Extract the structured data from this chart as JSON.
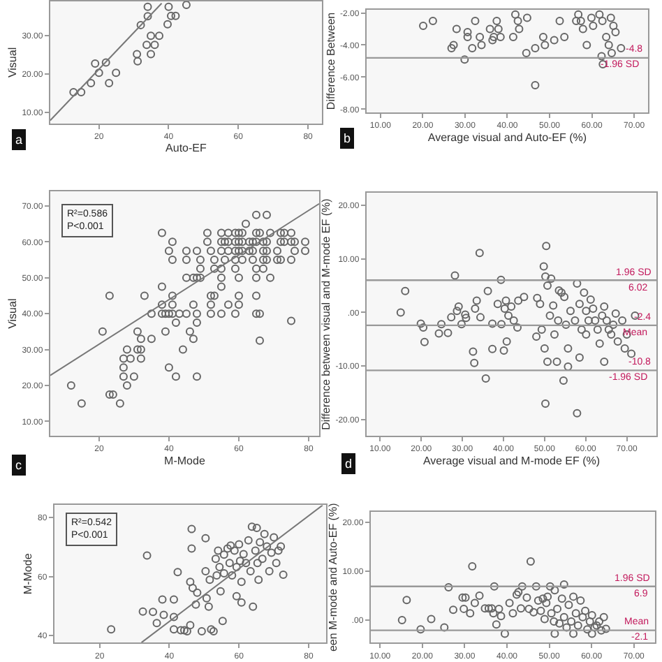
{
  "chart_data": [
    {
      "type": "scatter",
      "title": "a",
      "xlabel": "Auto-EF",
      "ylabel": "Visual",
      "xlim": [
        6,
        84
      ],
      "ylim": [
        7,
        39
      ],
      "xticks": [
        20,
        40,
        60,
        80
      ],
      "yticks": [
        {
          "value": 10,
          "label": "10.00"
        },
        {
          "value": 20,
          "label": "20.00"
        },
        {
          "value": 30,
          "label": "30.00"
        }
      ],
      "marker": "circle",
      "series": [
        {
          "color": "#666666",
          "x": [
            12.7,
            14.9,
            17.7,
            22.9,
            18.9,
            20,
            22,
            24.9,
            30.9,
            31.1,
            34.9,
            33.7,
            36,
            34.9,
            37.3,
            32,
            34,
            39.7,
            40.7,
            42,
            34,
            40,
            45.1
          ],
          "values": [
            15.2,
            15.2,
            17.6,
            17.6,
            22.7,
            20.3,
            23,
            20.3,
            25.2,
            23.3,
            25.2,
            27.6,
            27.6,
            30,
            30,
            32.8,
            35.1,
            33,
            35.2,
            35.2,
            37.6,
            37.6,
            38.1
          ]
        },
        {
          "type": "line",
          "marker": "none",
          "color": "#777777",
          "x": [
            6,
            38
          ],
          "values": [
            7.8,
            38.5
          ]
        }
      ]
    },
    {
      "type": "scatter",
      "title": "b",
      "xlabel": "Average visual and Auto-EF (%)",
      "ylabel": "Difference Between",
      "xlim": [
        6.7,
        73.3
      ],
      "ylim": [
        -8.2,
        -1.8
      ],
      "xticks": [
        {
          "value": 10,
          "label": "10.00"
        },
        {
          "value": 20,
          "label": "20.00"
        },
        {
          "value": 30,
          "label": "30.00"
        },
        {
          "value": 40,
          "label": "40.00"
        },
        {
          "value": 50,
          "label": "50.00"
        },
        {
          "value": 60,
          "label": "60.00"
        },
        {
          "value": 70,
          "label": "70.00"
        }
      ],
      "yticks": [
        {
          "value": -2,
          "label": "-2.00"
        },
        {
          "value": -4,
          "label": "-4.00"
        },
        {
          "value": -6,
          "label": "-6.00"
        },
        {
          "value": -8,
          "label": "-8.00"
        }
      ],
      "marker": "circle",
      "series": [
        {
          "color": "#666666",
          "x": [
            20.1,
            22.4,
            26.8,
            27.3,
            28.0,
            30.6,
            30.6,
            29.9,
            31.7,
            32.4,
            33.5,
            33.9,
            35.9,
            36.5,
            37.5,
            37.9,
            36.8,
            38.4,
            41.4,
            41.9,
            42.5,
            42.8,
            44.7,
            44.5,
            46.6,
            46.6,
            48.5,
            48.9,
            51.1,
            52.4,
            53.5,
            56.3,
            57.4,
            56.8,
            57.9,
            58.8,
            59.9,
            60.3,
            61.8,
            62.5,
            62.3,
            62.6,
            63.4,
            64.0,
            64.5,
            64.7,
            65.1,
            65.6,
            66.9
          ],
          "values": [
            -2.8,
            -2.5,
            -4.2,
            -4.0,
            -3.0,
            -3.2,
            -3.5,
            -4.9,
            -4.2,
            -2.5,
            -3.5,
            -4.0,
            -3.0,
            -3.7,
            -2.5,
            -3.0,
            -3.5,
            -3.5,
            -3.5,
            -2.1,
            -2.5,
            -3.0,
            -2.3,
            -4.5,
            -4.2,
            -6.5,
            -3.5,
            -4.0,
            -3.7,
            -2.5,
            -3.5,
            -2.5,
            -2.5,
            -2.1,
            -3.0,
            -4.0,
            -2.3,
            -2.8,
            -2.1,
            -2.5,
            -4.7,
            -5.2,
            -3.5,
            -4.0,
            -2.3,
            -4.5,
            -2.8,
            -3.2,
            -4.2
          ]
        }
      ],
      "ref_lines": [
        {
          "axis": "y",
          "value": -4.8,
          "label": "-4.8",
          "color": "#999999"
        }
      ],
      "annotations": [
        {
          "text": "-1.96 SD",
          "x": 72,
          "y": -4.8
        }
      ]
    },
    {
      "type": "scatter",
      "title": "c",
      "xlabel": "M-Mode",
      "ylabel": "Visual",
      "xlim": [
        6,
        83
      ],
      "ylim": [
        6,
        74
      ],
      "xticks": [
        20,
        40,
        60,
        80
      ],
      "yticks": [
        {
          "value": 10,
          "label": "10.00"
        },
        {
          "value": 20,
          "label": "20.00"
        },
        {
          "value": 30,
          "label": "30.00"
        },
        {
          "value": 40,
          "label": "40.00"
        },
        {
          "value": 50,
          "label": "50.00"
        },
        {
          "value": 60,
          "label": "60.00"
        },
        {
          "value": 70,
          "label": "70.00"
        }
      ],
      "marker": "circle",
      "series": [
        {
          "color": "#666666",
          "x": [
            38,
            51,
            55,
            57,
            59,
            60,
            61,
            65,
            66,
            69,
            72,
            73,
            75,
            41,
            51,
            55,
            56,
            57,
            59,
            60,
            61,
            63,
            64,
            65,
            67,
            68,
            72,
            73,
            75,
            76,
            79,
            40,
            45,
            48,
            52,
            55,
            57,
            59,
            60,
            61,
            63,
            64,
            67,
            68,
            71,
            76,
            79,
            41,
            45,
            49,
            53,
            56,
            59,
            61,
            64,
            67,
            68,
            71,
            72,
            75,
            49,
            53,
            55,
            59,
            65,
            67,
            45,
            47,
            48,
            49,
            55,
            60,
            65,
            69,
            38,
            55,
            23,
            33,
            41,
            52,
            53,
            60,
            65,
            38,
            41,
            47,
            52,
            57,
            60,
            35,
            38,
            39,
            40,
            41,
            43,
            45,
            48,
            52,
            55,
            59,
            65,
            66,
            75,
            42,
            48,
            21,
            31,
            39,
            46,
            32,
            35,
            47,
            66,
            28,
            31,
            32,
            44,
            27,
            29,
            32,
            27,
            40,
            27,
            30,
            42,
            48,
            12,
            28,
            23,
            24,
            15,
            26,
            62,
            65,
            68
          ],
          "values": [
            62.5,
            62.5,
            62.5,
            62.5,
            62.5,
            62.5,
            62.5,
            62.5,
            62.5,
            62.5,
            62.5,
            62.5,
            62.5,
            60,
            60,
            60,
            60,
            60,
            60,
            60,
            60,
            60,
            60,
            60,
            60,
            60,
            60,
            60,
            60,
            60,
            60,
            57.5,
            57.5,
            57.5,
            57.5,
            57.5,
            57.5,
            57.5,
            57.5,
            57.5,
            57.5,
            57.5,
            57.5,
            57.5,
            57.5,
            57.5,
            57.5,
            55,
            55,
            55,
            55,
            55,
            55,
            55,
            55,
            55,
            55,
            55,
            55,
            55,
            52.5,
            52.5,
            52.5,
            52.5,
            52.5,
            52.5,
            50,
            50,
            50,
            50,
            50,
            50,
            50,
            50,
            47.5,
            47.5,
            45,
            45,
            45,
            45,
            45,
            45,
            45,
            42.5,
            42.5,
            42.5,
            42.5,
            42.5,
            42.5,
            40,
            40,
            40,
            40,
            40,
            40,
            40,
            40,
            40,
            40,
            40,
            40,
            40,
            38,
            37.5,
            37.5,
            35,
            35,
            35,
            35,
            33,
            33,
            33,
            32.5,
            30,
            30,
            30,
            30,
            27.5,
            27.5,
            27.5,
            25,
            25,
            22.5,
            22.5,
            22.5,
            22.5,
            20,
            20,
            17.5,
            17.5,
            15,
            15,
            65,
            67.5,
            67.5
          ]
        },
        {
          "type": "line",
          "marker": "none",
          "color": "#777777",
          "x": [
            6,
            83
          ],
          "values": [
            22.8,
            70.6
          ]
        }
      ],
      "annotations": [
        "R²=0.586",
        "P<0.001"
      ]
    },
    {
      "type": "scatter",
      "title": "d",
      "xlabel": "Average visual and M-mode EF (%)",
      "ylabel": "Difference between visual and M-mode EF (%)",
      "xlim": [
        6.7,
        77.2
      ],
      "ylim": [
        -23,
        22.3
      ],
      "xticks": [
        {
          "value": 10,
          "label": "10.00"
        },
        {
          "value": 20,
          "label": "20.00"
        },
        {
          "value": 30,
          "label": "30.00"
        },
        {
          "value": 40,
          "label": "40.00"
        },
        {
          "value": 50,
          "label": "50.00"
        },
        {
          "value": 60,
          "label": "60.00"
        },
        {
          "value": 70,
          "label": "70.00"
        }
      ],
      "yticks": [
        {
          "value": 20,
          "label": "20.00"
        },
        {
          "value": 10,
          "label": "10.00"
        },
        {
          "value": 0,
          "label": ".00"
        },
        {
          "value": -10,
          "label": "-10.00"
        },
        {
          "value": -20,
          "label": "-20.00"
        }
      ],
      "marker": "circle",
      "series": [
        {
          "color": "#666666",
          "x": [
            15.0,
            16.1,
            19.9,
            20.5,
            20.8,
            24.3,
            24.9,
            26.5,
            27.3,
            28.2,
            28.7,
            29.1,
            29.8,
            30.7,
            30.9,
            32.6,
            32.9,
            33.1,
            33.5,
            34.2,
            34.4,
            35.7,
            36.2,
            37.3,
            37.3,
            38.6,
            39.4,
            39.5,
            40.1,
            40.3,
            40.6,
            40.8,
            41.2,
            41.9,
            42.5,
            43.4,
            43.6,
            45.0,
            48.0,
            48.2,
            48.9,
            49.3,
            49.8,
            50.0,
            50.2,
            50.4,
            50.7,
            50.7,
            51.3,
            51.6,
            52.1,
            52.4,
            53.0,
            53.3,
            53.5,
            54.1,
            54.6,
            54.8,
            55.2,
            55.7,
            56.3,
            57.4,
            57.9,
            57.9,
            58.5,
            59.0,
            59.6,
            60.1,
            60.7,
            61.2,
            61.8,
            62.3,
            62.9,
            63.4,
            64.0,
            64.5,
            65.1,
            65.6,
            66.2,
            66.7,
            67.3,
            67.8,
            68.9,
            69.5,
            70.0,
            71.1,
            72.0,
            64.5,
            60.1,
            55.7,
            50.2,
            58.5
          ],
          "values": [
            0,
            4.0,
            -2.1,
            -2.8,
            -5.5,
            -3.9,
            -2.2,
            -3.8,
            -0.9,
            6.9,
            0.3,
            1.1,
            -2.2,
            -0.4,
            -1.0,
            -7.3,
            -9.4,
            0.7,
            2.2,
            11.1,
            -0.9,
            -12.3,
            4.0,
            -2.1,
            -6.8,
            1.6,
            6.1,
            -2.2,
            -7.1,
            0.7,
            2.2,
            -5.4,
            -0.6,
            1.1,
            -1.5,
            -2.8,
            2.2,
            2.9,
            -4.5,
            2.7,
            1.6,
            -3.2,
            8.6,
            -6.7,
            6.7,
            12.4,
            5.0,
            -9.2,
            -0.6,
            6.3,
            1.3,
            -4.1,
            -9.2,
            -1.5,
            4.1,
            3.7,
            -12.7,
            2.9,
            -2.3,
            -10.1,
            0.3,
            -1.5,
            5.4,
            -18.8,
            1.6,
            -3.2,
            3.7,
            0.3,
            -1.5,
            2.4,
            0.7,
            -1.5,
            -3.2,
            -5.8,
            -0.6,
            1.1,
            -1.5,
            -3.2,
            -4.1,
            -2.3,
            -0.2,
            -5.4,
            -1.5,
            -6.7,
            -4.1,
            -7.7,
            -0.6,
            -9.2,
            -4.1,
            -6.7,
            -17.0,
            -8.4
          ]
        }
      ],
      "ref_lines": [
        {
          "axis": "y",
          "value": 6.02,
          "label": "1.96 SD",
          "color": "#999999"
        },
        {
          "axis": "y",
          "value": -2.4,
          "label": "-2.4",
          "color": "#999999"
        },
        {
          "axis": "y",
          "value": -10.8,
          "label": "-10.8",
          "color": "#999999"
        }
      ],
      "annotations": [
        {
          "text": "6.02",
          "x": 76,
          "y": 6.02
        },
        {
          "text": "Mean",
          "x": 76,
          "y": -2.4
        },
        {
          "text": "-1.96 SD",
          "x": 76,
          "y": -10.8
        }
      ]
    },
    {
      "type": "scatter",
      "ylabel": "M-Mode",
      "xlim": [
        7,
        85
      ],
      "ylim": [
        37.6,
        84.2
      ],
      "yticks": [
        40,
        60,
        80
      ],
      "xticks": [
        20,
        40,
        60,
        80
      ],
      "marker": "circle",
      "series": [
        {
          "color": "#666666",
          "x": [
            23.3,
            32.4,
            33.6,
            35.3,
            36.4,
            38.4,
            38.0,
            41.3,
            41.3,
            42.4,
            41.3,
            43.3,
            44.3,
            45.1,
            46.0,
            46.4,
            46.0,
            46.4,
            46.7,
            47.6,
            49.3,
            50.4,
            50.4,
            50.7,
            51.3,
            51.6,
            52.0,
            52.7,
            53.3,
            53.6,
            54.0,
            54.4,
            54.7,
            55.7,
            55.7,
            56.7,
            57.3,
            57.6,
            58.0,
            58.7,
            59.3,
            59.3,
            60.0,
            60.3,
            60.7,
            61.3,
            62.0,
            62.7,
            63.3,
            63.7,
            64.7,
            65.1,
            65.3,
            65.6,
            66.0,
            66.7,
            67.3,
            68.0,
            68.7,
            69.3,
            70.0,
            70.7,
            71.3,
            72.0,
            72.7,
            60.7,
            64.0,
            55.3,
            48.0
          ],
          "values": [
            42.1,
            48.1,
            67.1,
            48.0,
            44.2,
            47.0,
            52.2,
            52.2,
            46.3,
            61.5,
            42.1,
            41.8,
            41.8,
            41.4,
            43.5,
            76.1,
            58.2,
            69.5,
            56.1,
            50.5,
            41.4,
            73.0,
            61.8,
            52.6,
            49.8,
            58.9,
            42.1,
            41.4,
            66.0,
            60.4,
            68.8,
            63.2,
            55.0,
            67.4,
            61.1,
            69.5,
            64.6,
            70.5,
            60.4,
            68.8,
            63.2,
            53.3,
            70.9,
            65.3,
            58.2,
            67.6,
            64.6,
            72.3,
            61.8,
            76.9,
            68.8,
            76.5,
            64.6,
            58.9,
            71.6,
            66.0,
            74.4,
            70.2,
            61.8,
            68.1,
            73.3,
            64.6,
            68.8,
            70.2,
            60.6,
            51.2,
            49.8,
            44.9,
            54.5
          ]
        },
        {
          "type": "line",
          "marker": "none",
          "color": "#777777",
          "x": [
            32,
            84
          ],
          "values": [
            37.6,
            84.2
          ]
        }
      ],
      "annotations": [
        "R²=0.542",
        "P<0.001"
      ]
    },
    {
      "type": "scatter",
      "ylabel": "een M-mode and Auto-EF (%)",
      "xlim": [
        7.8,
        75
      ],
      "ylim": [
        -4.6,
        22.1
      ],
      "yticks": [
        {
          "value": 20,
          "label": "20.00"
        },
        {
          "value": 10,
          "label": "10.00"
        },
        {
          "value": 0,
          "label": ".00"
        }
      ],
      "xticks": [
        {
          "value": 10,
          "label": "10.00"
        },
        {
          "value": 20,
          "label": "20.00"
        },
        {
          "value": 30,
          "label": "30.00"
        },
        {
          "value": 40,
          "label": "40.00"
        },
        {
          "value": 50,
          "label": "50.00"
        },
        {
          "value": 60,
          "label": "60.00"
        },
        {
          "value": 70,
          "label": "70.00"
        }
      ],
      "marker": "circle",
      "series": [
        {
          "color": "#666666",
          "x": [
            15.2,
            16.3,
            19.6,
            22.1,
            25.2,
            26.2,
            27.3,
            29.5,
            30.2,
            29.8,
            31.3,
            31.8,
            32.4,
            33.5,
            34.8,
            35.7,
            36.4,
            37.0,
            36.8,
            37.5,
            38.1,
            38.6,
            39.5,
            40.6,
            41.4,
            42.3,
            42.7,
            43.3,
            43.6,
            44.7,
            45.2,
            45.6,
            46.3,
            46.9,
            47.4,
            48.0,
            48.5,
            48.9,
            49.3,
            49.6,
            50.2,
            50.5,
            51.1,
            51.3,
            51.9,
            52.4,
            53.0,
            53.5,
            53.5,
            54.1,
            54.6,
            55.2,
            55.7,
            56.3,
            56.8,
            57.4,
            57.9,
            58.5,
            59.0,
            59.6,
            60.1,
            60.7,
            61.2,
            61.8,
            62.3,
            62.9,
            63.4,
            60.1,
            55.7,
            51.3
          ],
          "values": [
            0.0,
            4.1,
            -1.9,
            0.2,
            -1.5,
            6.7,
            2.1,
            4.6,
            4.6,
            2.3,
            1.4,
            11.0,
            3.5,
            5.0,
            2.4,
            2.4,
            2.4,
            6.9,
            1.4,
            -0.9,
            2.3,
            0.8,
            -2.8,
            3.5,
            1.4,
            5.2,
            5.7,
            2.4,
            6.9,
            4.6,
            2.3,
            12.0,
            1.6,
            6.9,
            4.0,
            1.9,
            4.4,
            0.2,
            3.5,
            4.8,
            6.9,
            1.4,
            -0.3,
            6.1,
            2.3,
            -0.7,
            4.4,
            7.3,
            0.6,
            -1.5,
            3.1,
            -0.3,
            4.8,
            1.4,
            -1.1,
            4.0,
            0.6,
            1.9,
            -1.9,
            -0.3,
            1.0,
            -1.5,
            -1.1,
            -0.3,
            -2.1,
            0.6,
            -1.8,
            -2.8,
            -2.8,
            -2.8
          ]
        }
      ],
      "ref_lines": [
        {
          "axis": "y",
          "value": 6.9,
          "label": "1.96 SD",
          "color": "#999999"
        },
        {
          "axis": "y",
          "value": -2.1,
          "label": "Mean",
          "color": "#999999"
        }
      ],
      "annotations": [
        {
          "text": "6.9",
          "x": 74,
          "y": 6.9
        },
        {
          "text": "-2.1",
          "x": 74,
          "y": -2.1
        }
      ]
    }
  ]
}
